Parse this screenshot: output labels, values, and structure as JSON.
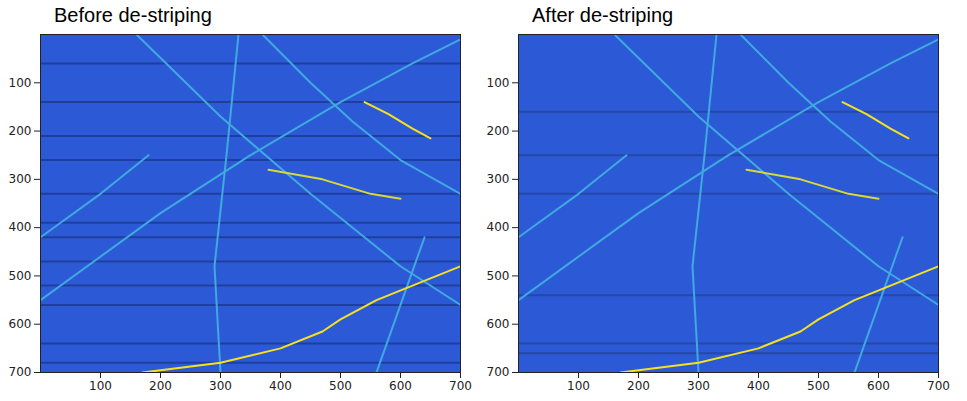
{
  "chart_data": [
    {
      "type": "image",
      "title": "Before de-striping",
      "color": "#2c5ad6",
      "xlim": [
        0,
        700
      ],
      "ylim": [
        700,
        0
      ],
      "xticks": [
        100,
        200,
        300,
        400,
        500,
        600,
        700
      ],
      "yticks": [
        100,
        200,
        300,
        400,
        500,
        600,
        700
      ],
      "series": [
        {
          "type": "line",
          "color": "#1f3f9e",
          "x": [
            0,
            700
          ],
          "y": [
            60,
            60
          ]
        },
        {
          "type": "line",
          "color": "#1f3f9e",
          "x": [
            0,
            700
          ],
          "y": [
            140,
            140
          ]
        },
        {
          "type": "line",
          "color": "#1f3f9e",
          "x": [
            0,
            700
          ],
          "y": [
            210,
            210
          ]
        },
        {
          "type": "line",
          "color": "#1f3f9e",
          "x": [
            0,
            700
          ],
          "y": [
            260,
            260
          ]
        },
        {
          "type": "line",
          "color": "#1f3f9e",
          "x": [
            0,
            700
          ],
          "y": [
            330,
            330
          ]
        },
        {
          "type": "line",
          "color": "#1f3f9e",
          "x": [
            0,
            700
          ],
          "y": [
            390,
            390
          ]
        },
        {
          "type": "line",
          "color": "#1f3f9e",
          "x": [
            0,
            700
          ],
          "y": [
            420,
            420
          ]
        },
        {
          "type": "line",
          "color": "#1f3f9e",
          "x": [
            0,
            700
          ],
          "y": [
            470,
            470
          ]
        },
        {
          "type": "line",
          "color": "#1f3f9e",
          "x": [
            0,
            700
          ],
          "y": [
            520,
            520
          ]
        },
        {
          "type": "line",
          "color": "#1f3f9e",
          "x": [
            0,
            700
          ],
          "y": [
            560,
            560
          ]
        },
        {
          "type": "line",
          "color": "#1f3f9e",
          "x": [
            0,
            700
          ],
          "y": [
            640,
            640
          ]
        },
        {
          "type": "line",
          "color": "#1f3f9e",
          "x": [
            0,
            700
          ],
          "y": [
            680,
            680
          ]
        },
        {
          "type": "line",
          "color": "#3fa9e0",
          "x": [
            0,
            200,
            350,
            500,
            620,
            700
          ],
          "y": [
            550,
            370,
            250,
            140,
            60,
            10
          ]
        },
        {
          "type": "line",
          "color": "#3fa9e0",
          "x": [
            160,
            300,
            450,
            600,
            700
          ],
          "y": [
            0,
            170,
            330,
            480,
            560
          ]
        },
        {
          "type": "line",
          "color": "#3fa9e0",
          "x": [
            330,
            310,
            290,
            300
          ],
          "y": [
            0,
            250,
            480,
            700
          ]
        },
        {
          "type": "line",
          "color": "#3fa9e0",
          "x": [
            0,
            100,
            180
          ],
          "y": [
            420,
            330,
            250
          ]
        },
        {
          "type": "line",
          "color": "#3fa9e0",
          "x": [
            370,
            450,
            520,
            600,
            700
          ],
          "y": [
            0,
            100,
            180,
            260,
            330
          ]
        },
        {
          "type": "line",
          "color": "#3fa9e0",
          "x": [
            560,
            600,
            640
          ],
          "y": [
            700,
            560,
            420
          ]
        },
        {
          "type": "line",
          "color": "#d8d83a",
          "x": [
            380,
            470,
            550,
            600
          ],
          "y": [
            280,
            300,
            330,
            340
          ]
        },
        {
          "type": "line",
          "color": "#f5e11e",
          "x": [
            540,
            580,
            620,
            650
          ],
          "y": [
            140,
            165,
            195,
            215
          ]
        },
        {
          "type": "line",
          "color": "#f5e11e",
          "x": [
            170,
            300,
            400,
            470,
            500,
            560,
            620,
            700
          ],
          "y": [
            700,
            680,
            650,
            615,
            590,
            550,
            520,
            480
          ]
        }
      ]
    },
    {
      "type": "image",
      "title": "After de-striping",
      "color": "#2c5ad6",
      "xlim": [
        0,
        700
      ],
      "ylim": [
        700,
        0
      ],
      "xticks": [
        100,
        200,
        300,
        400,
        500,
        600,
        700
      ],
      "yticks": [
        100,
        200,
        300,
        400,
        500,
        600,
        700
      ],
      "series": [
        {
          "type": "line",
          "color": "#2449a6",
          "x": [
            0,
            700
          ],
          "y": [
            160,
            160
          ]
        },
        {
          "type": "line",
          "color": "#2449a6",
          "x": [
            0,
            700
          ],
          "y": [
            250,
            250
          ]
        },
        {
          "type": "line",
          "color": "#2449a6",
          "x": [
            0,
            700
          ],
          "y": [
            330,
            330
          ]
        },
        {
          "type": "line",
          "color": "#2449a6",
          "x": [
            0,
            700
          ],
          "y": [
            540,
            540
          ]
        },
        {
          "type": "line",
          "color": "#2449a6",
          "x": [
            0,
            700
          ],
          "y": [
            640,
            640
          ]
        },
        {
          "type": "line",
          "color": "#2449a6",
          "x": [
            0,
            700
          ],
          "y": [
            660,
            660
          ]
        },
        {
          "type": "line",
          "color": "#3fa9e0",
          "x": [
            0,
            200,
            350,
            500,
            620,
            700
          ],
          "y": [
            550,
            370,
            250,
            140,
            60,
            10
          ]
        },
        {
          "type": "line",
          "color": "#3fa9e0",
          "x": [
            160,
            300,
            450,
            600,
            700
          ],
          "y": [
            0,
            170,
            330,
            480,
            560
          ]
        },
        {
          "type": "line",
          "color": "#3fa9e0",
          "x": [
            330,
            310,
            290,
            300
          ],
          "y": [
            0,
            250,
            480,
            700
          ]
        },
        {
          "type": "line",
          "color": "#3fa9e0",
          "x": [
            0,
            100,
            180
          ],
          "y": [
            420,
            330,
            250
          ]
        },
        {
          "type": "line",
          "color": "#3fa9e0",
          "x": [
            370,
            450,
            520,
            600,
            700
          ],
          "y": [
            0,
            100,
            180,
            260,
            330
          ]
        },
        {
          "type": "line",
          "color": "#3fa9e0",
          "x": [
            560,
            600,
            640
          ],
          "y": [
            700,
            560,
            420
          ]
        },
        {
          "type": "line",
          "color": "#d8d83a",
          "x": [
            380,
            470,
            550,
            600
          ],
          "y": [
            280,
            300,
            330,
            340
          ]
        },
        {
          "type": "line",
          "color": "#f5e11e",
          "x": [
            540,
            580,
            620,
            650
          ],
          "y": [
            140,
            165,
            195,
            215
          ]
        },
        {
          "type": "line",
          "color": "#f5e11e",
          "x": [
            170,
            300,
            400,
            470,
            500,
            560,
            620,
            700
          ],
          "y": [
            700,
            680,
            650,
            615,
            590,
            550,
            520,
            480
          ]
        }
      ]
    }
  ]
}
